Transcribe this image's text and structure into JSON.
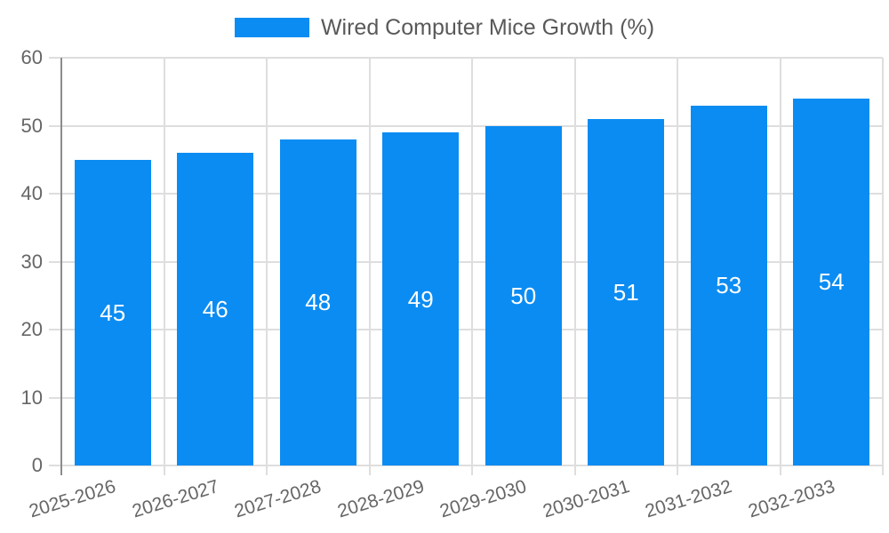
{
  "legend": {
    "label": "Wired Computer Mice Growth (%)"
  },
  "chart_data": {
    "type": "bar",
    "title": "Wired Computer Mice Growth (%)",
    "categories": [
      "2025-2026",
      "2026-2027",
      "2027-2028",
      "2028-2029",
      "2029-2030",
      "2030-2031",
      "2031-2032",
      "2032-2033"
    ],
    "values": [
      45,
      46,
      48,
      49,
      50,
      51,
      53,
      54
    ],
    "series": [
      {
        "name": "Wired Computer Mice Growth (%)",
        "values": [
          45,
          46,
          48,
          49,
          50,
          51,
          53,
          54
        ]
      }
    ],
    "bar_value_labels": [
      "45",
      "46",
      "48",
      "49",
      "50",
      "51",
      "53",
      "54"
    ],
    "xlabel": "",
    "ylabel": "",
    "ylim": [
      0,
      60
    ],
    "yticks": [
      0,
      10,
      20,
      30,
      40,
      50,
      60
    ],
    "grid": true,
    "legend_position": "top",
    "colors": {
      "bar": "#0b8cf2",
      "grid": "#dedede",
      "axis": "#8c8c8c",
      "tick_label": "#666666",
      "legend_text": "#58595b",
      "bar_label": "#ffffff",
      "background": "#ffffff"
    }
  }
}
